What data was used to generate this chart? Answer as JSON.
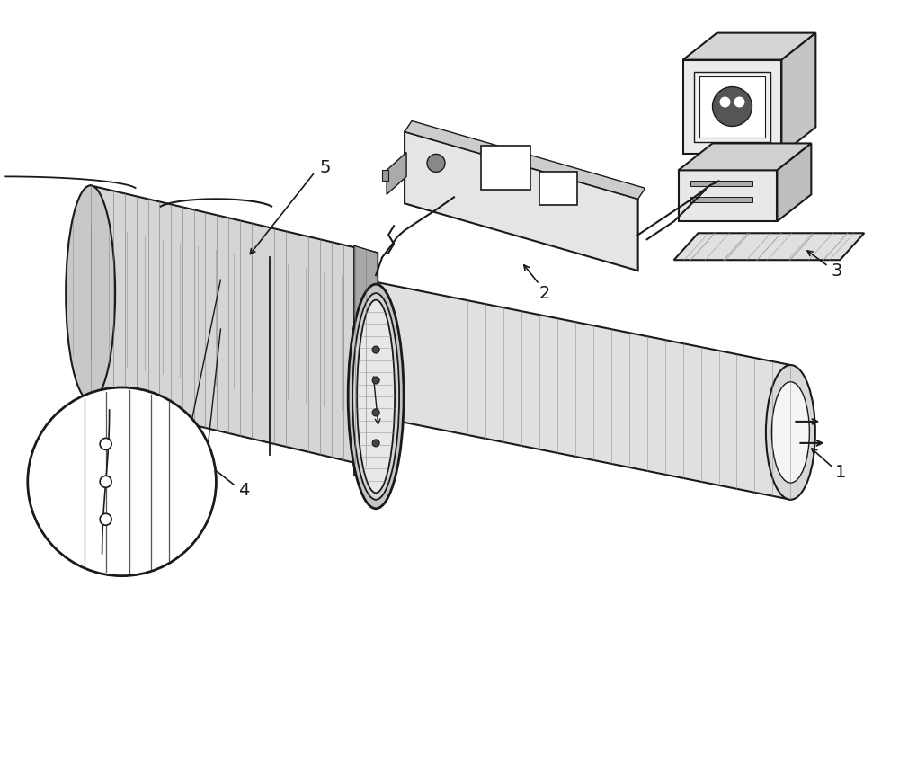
{
  "bg_color": "#ffffff",
  "line_color": "#1a1a1a",
  "lw_main": 1.5,
  "lw_thick": 2.0,
  "lw_thin": 0.8,
  "label_fontsize": 14,
  "figsize": [
    10.0,
    8.51
  ]
}
